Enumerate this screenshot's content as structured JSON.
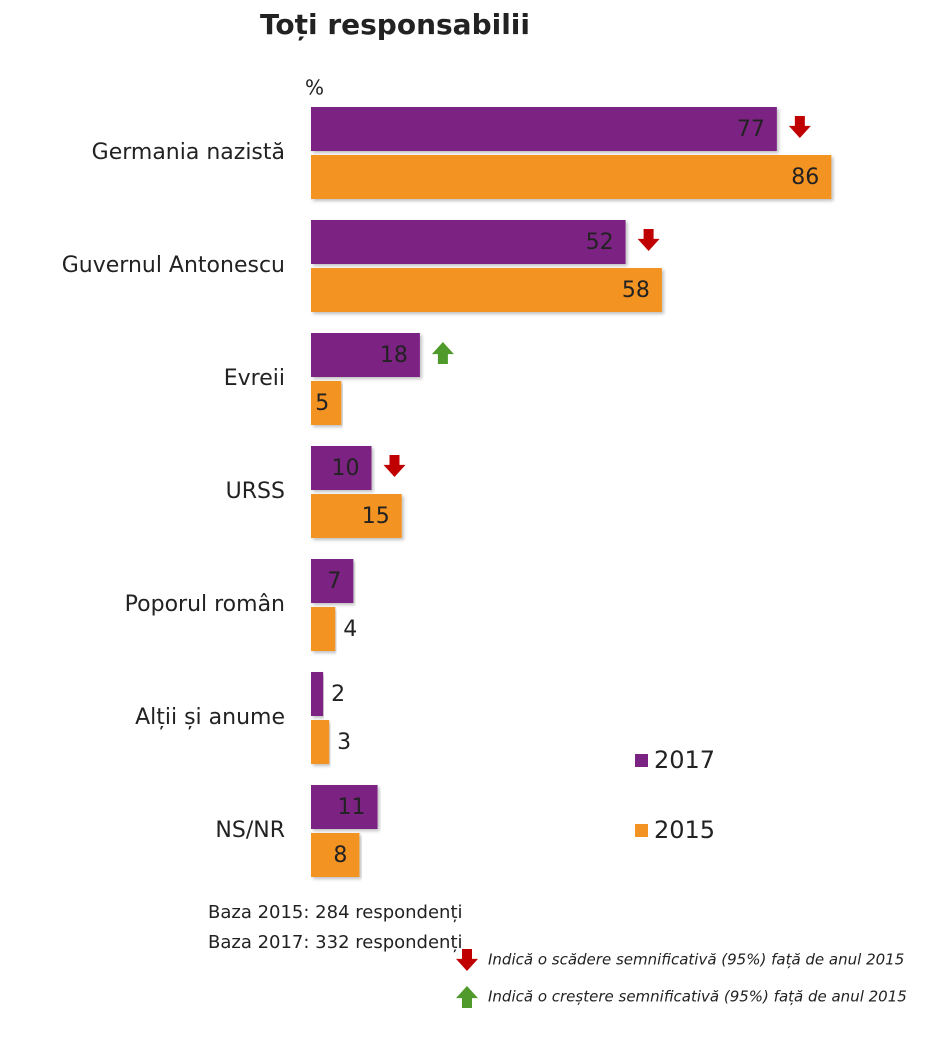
{
  "chart_data": {
    "type": "bar",
    "title": "Toți responsabilii",
    "unit_label": "%",
    "categories": [
      "Germania nazistă",
      "Guvernul Antonescu",
      "Evreii",
      "URSS",
      "Poporul român",
      "Alții și anume",
      "NS/NR"
    ],
    "series": [
      {
        "name": "2017",
        "color": "#7b2383",
        "values": [
          77,
          52,
          18,
          10,
          7,
          2,
          11
        ],
        "significance": [
          "down",
          "down",
          "up",
          "down",
          null,
          null,
          null
        ]
      },
      {
        "name": "2015",
        "color": "#f39323",
        "values": [
          86,
          58,
          5,
          15,
          4,
          3,
          8
        ]
      }
    ],
    "notes": [
      "Baza 2015: 284 respondenți",
      "Baza 2017: 332 respondenți"
    ],
    "significance_legend": {
      "down": "Indică o scădere semnificativă (95%) față de anul 2015",
      "up": "Indică o creștere semnificativă (95%) față de anul 2015"
    },
    "colors": {
      "down": "#c00000",
      "up": "#4f9a2a",
      "notes": "#e6007e"
    }
  }
}
